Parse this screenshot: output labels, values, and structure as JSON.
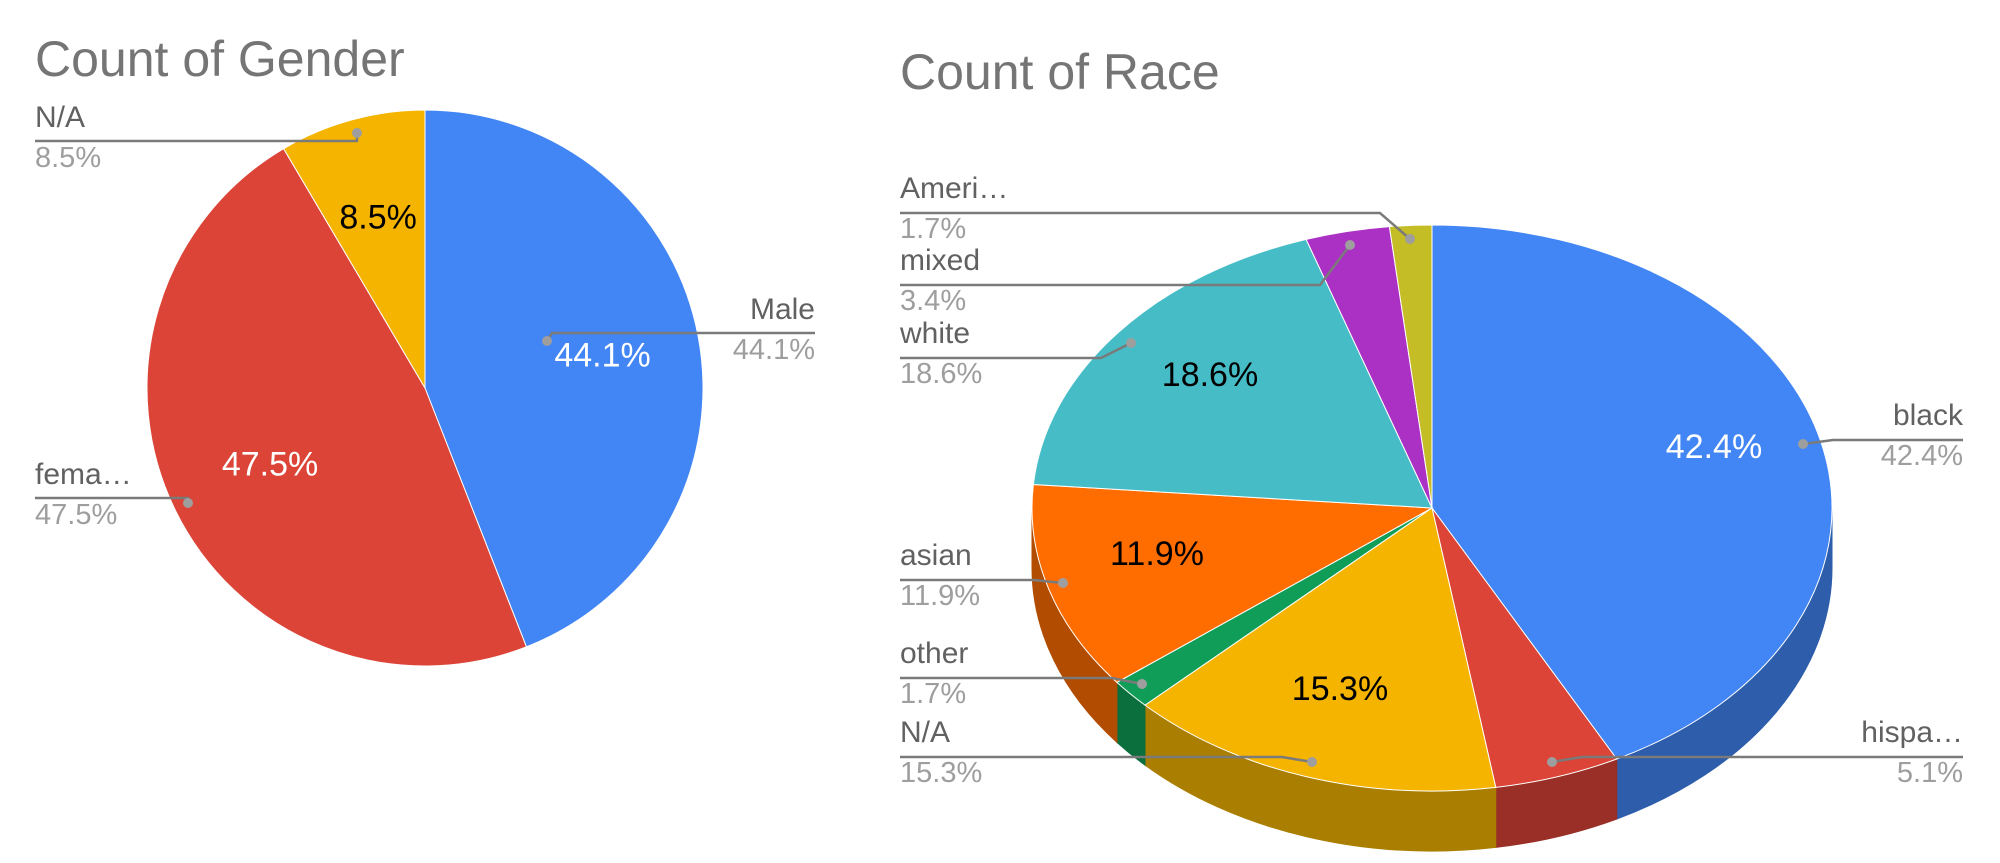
{
  "chart_data": [
    {
      "type": "pie",
      "title": "Count of Gender",
      "slices": [
        {
          "label": "Male",
          "short_label": "Male",
          "value": 44.1,
          "display": "44.1%",
          "color": "#4285F4",
          "text_color": "#ffffff"
        },
        {
          "label": "fema…",
          "short_label": "fema…",
          "value": 47.5,
          "display": "47.5%",
          "color": "#DB4437",
          "text_color": "#ffffff"
        },
        {
          "label": "N/A",
          "short_label": "N/A",
          "value": 8.5,
          "display": "8.5%",
          "color": "#F4B400",
          "text_color": "#000000"
        }
      ]
    },
    {
      "type": "pie",
      "style": "3d",
      "title": "Count of Race",
      "slices": [
        {
          "label": "black",
          "short_label": "black",
          "value": 42.4,
          "display": "42.4%",
          "color": "#4285F4",
          "side_color": "#2D5DAB",
          "text_color": "#ffffff"
        },
        {
          "label": "hispa…",
          "short_label": "hispa…",
          "value": 5.1,
          "display": "5.1%",
          "color": "#DB4437",
          "side_color": "#992F26",
          "text_color": "#ffffff"
        },
        {
          "label": "N/A",
          "short_label": "N/A",
          "value": 15.3,
          "display": "15.3%",
          "color": "#F4B400",
          "side_color": "#AA7E00",
          "text_color": "#000000"
        },
        {
          "label": "other",
          "short_label": "other",
          "value": 1.7,
          "display": "1.7%",
          "color": "#0F9D58",
          "side_color": "#0A6E3D",
          "text_color": "#ffffff"
        },
        {
          "label": "asian",
          "short_label": "asian",
          "value": 11.9,
          "display": "11.9%",
          "color": "#FF6D00",
          "side_color": "#B24C00",
          "text_color": "#000000"
        },
        {
          "label": "white",
          "short_label": "white",
          "value": 18.6,
          "display": "18.6%",
          "color": "#46BDC6",
          "side_color": "#31848A",
          "text_color": "#000000"
        },
        {
          "label": "mixed",
          "short_label": "mixed",
          "value": 3.4,
          "display": "3.4%",
          "color": "#AB30C4",
          "side_color": "#772289",
          "text_color": "#ffffff"
        },
        {
          "label": "Ameri…",
          "short_label": "Ameri…",
          "value": 1.7,
          "display": "1.7%",
          "color": "#C4BD26",
          "side_color": "#89841A",
          "text_color": "#000000"
        }
      ]
    }
  ]
}
